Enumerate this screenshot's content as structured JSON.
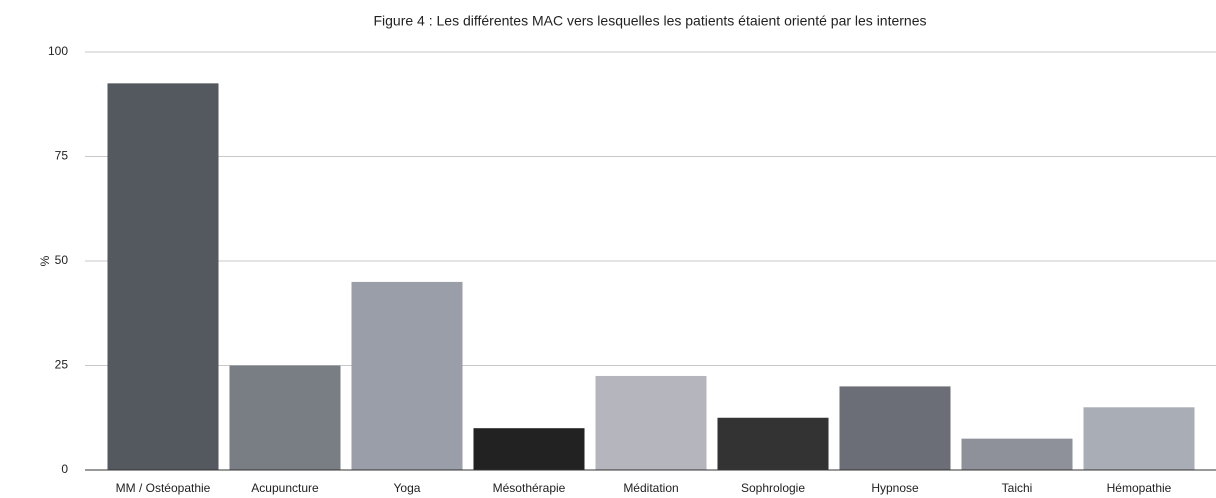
{
  "chart_data": {
    "type": "bar",
    "title": "Figure 4 : Les différentes MAC vers lesquelles les patients étaient orienté par les internes",
    "y_label": "%",
    "categories": [
      "MM / Ostéopathie",
      "Acupuncture",
      "Yoga",
      "Mésothérapie",
      "Méditation",
      "Sophrologie",
      "Hypnose",
      "Taichi",
      "Hémopathie"
    ],
    "values": [
      92.5,
      25,
      45,
      10,
      22.5,
      12.5,
      20,
      7.5,
      15
    ],
    "colors": [
      "#54585f",
      "#797d84",
      "#9a9ea8",
      "#222222",
      "#b5b5bd",
      "#333333",
      "#6b6e76",
      "#8e9199",
      "#a9adb5"
    ],
    "ylim": [
      0,
      100
    ],
    "yticks": [
      0,
      25,
      50,
      75,
      100
    ],
    "grid": true
  }
}
